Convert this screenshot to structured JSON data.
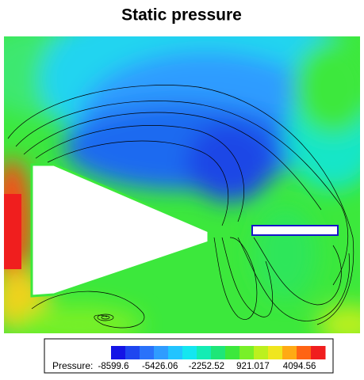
{
  "title": "Static pressure",
  "colorbar": {
    "label": "Pressure:",
    "ticks": [
      -8599.6,
      -5426.06,
      -2252.52,
      921.017,
      4094.56
    ],
    "lim": [
      -8599.6,
      6010
    ],
    "colors": [
      "#1414e6",
      "#1e46f0",
      "#2a72fa",
      "#2f9cff",
      "#22c4ff",
      "#14e6f0",
      "#14ecb4",
      "#1ee678",
      "#3ce83c",
      "#78f028",
      "#bcf01e",
      "#f0e61e",
      "#ffaa14",
      "#ff6414",
      "#f01e1e"
    ]
  }
}
